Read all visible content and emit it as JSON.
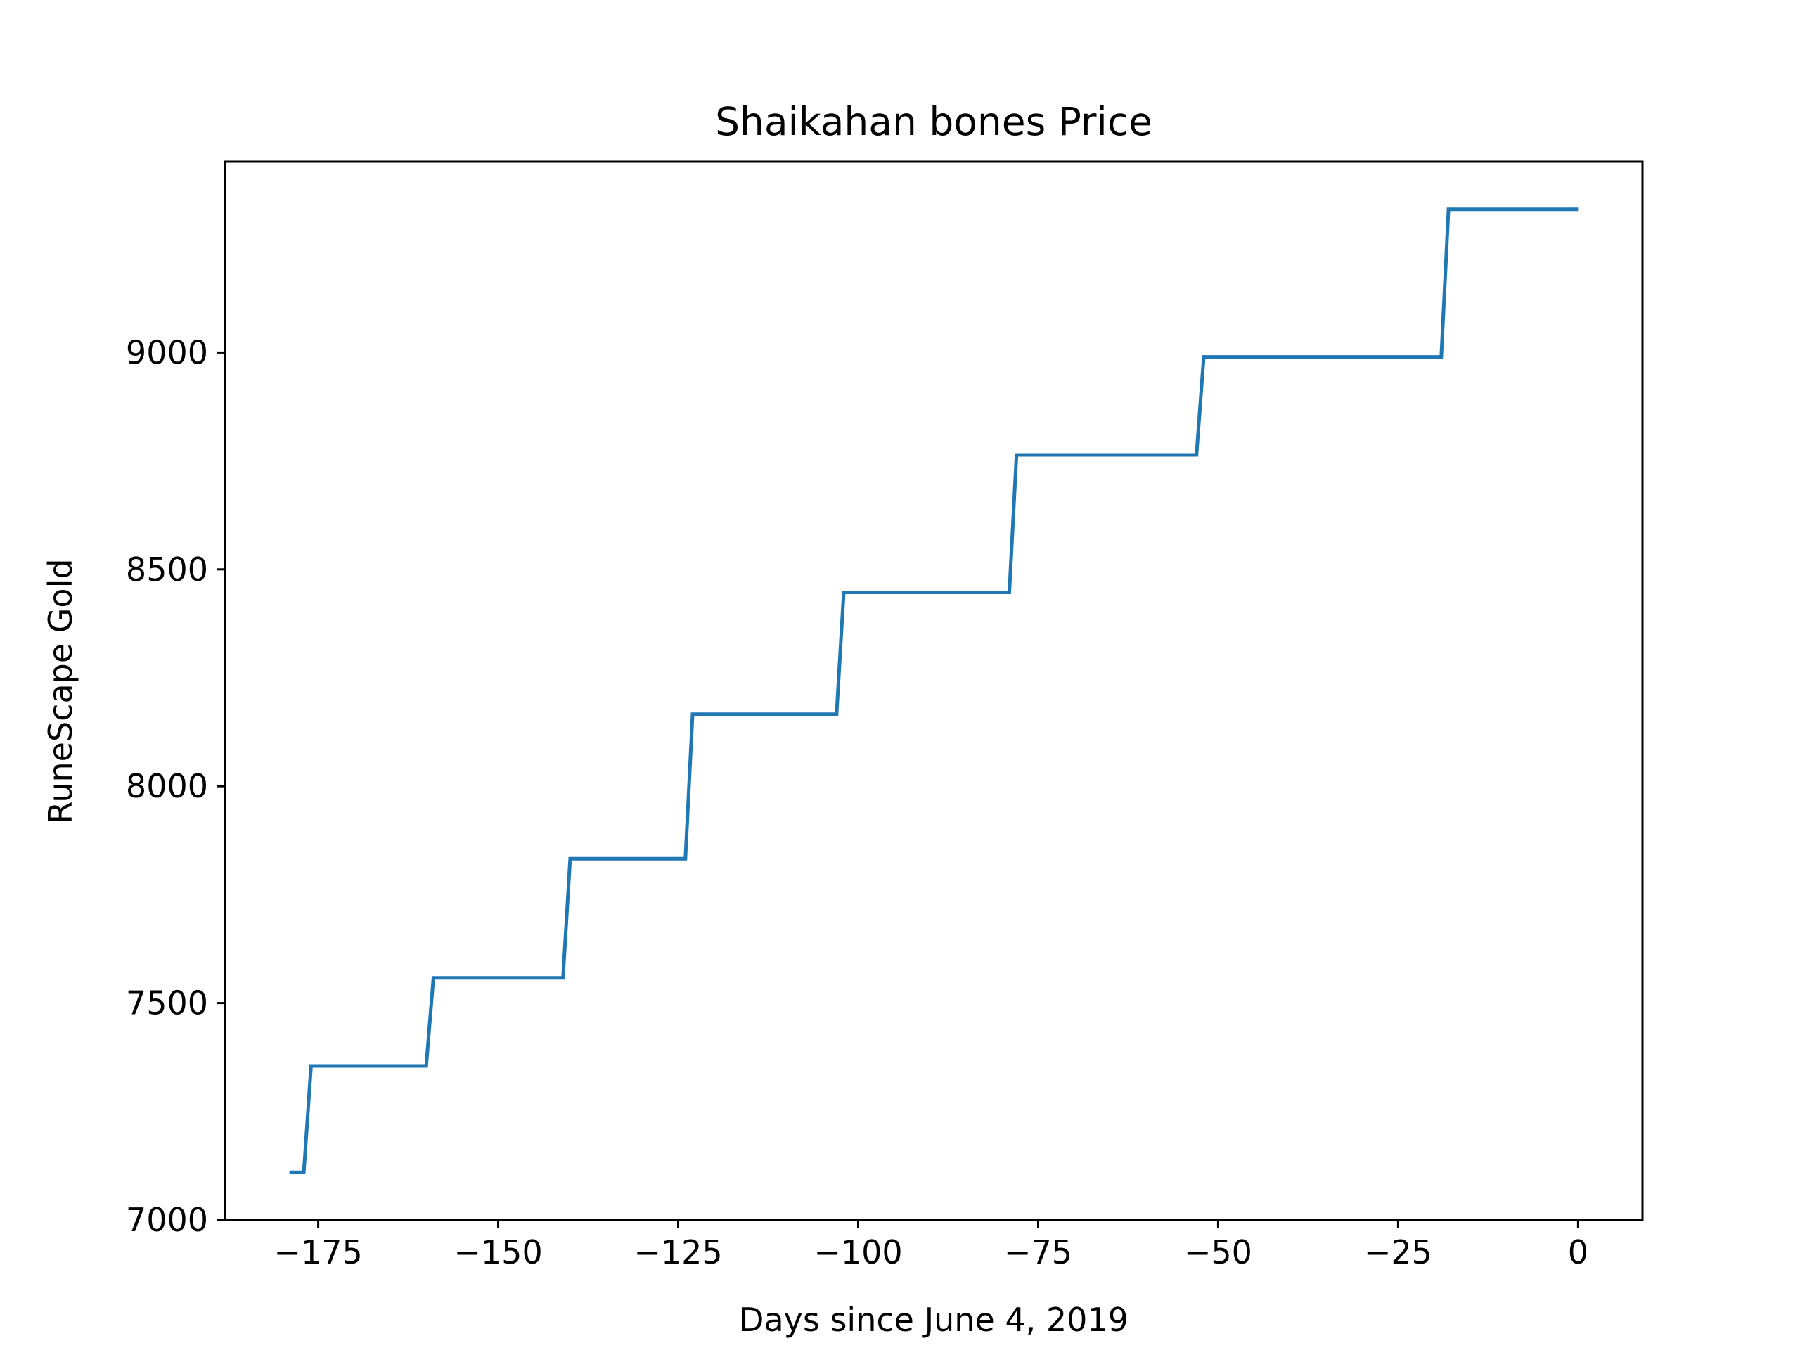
{
  "chart_data": {
    "type": "line",
    "title": "Shaikahan bones Price",
    "xlabel": "Days since June 4, 2019",
    "ylabel": "RuneScape Gold",
    "xlim": [
      -187.95,
      8.95
    ],
    "ylim": [
      7000,
      9440
    ],
    "x_ticks": [
      -175,
      -150,
      -125,
      -100,
      -75,
      -50,
      -25,
      0
    ],
    "x_tick_labels": [
      "−175",
      "−150",
      "−125",
      "−100",
      "−75",
      "−50",
      "−25",
      "0"
    ],
    "y_ticks": [
      7000,
      7500,
      8000,
      8500,
      9000
    ],
    "y_tick_labels": [
      "7000",
      "7500",
      "8000",
      "8500",
      "9000"
    ],
    "grid": false,
    "series_color": "#1f77b4",
    "series": [
      {
        "x": [
          -179,
          -178,
          -177,
          -176,
          -160,
          -159,
          -141,
          -140,
          -124,
          -123,
          -103,
          -102,
          -79,
          -78,
          -53,
          -52,
          -19,
          -18,
          0
        ],
        "y": [
          7110,
          7110,
          7110,
          7355,
          7355,
          7558,
          7558,
          7833,
          7833,
          8166,
          8166,
          8447,
          8447,
          8764,
          8764,
          8990,
          8990,
          9330,
          9330
        ]
      }
    ]
  }
}
